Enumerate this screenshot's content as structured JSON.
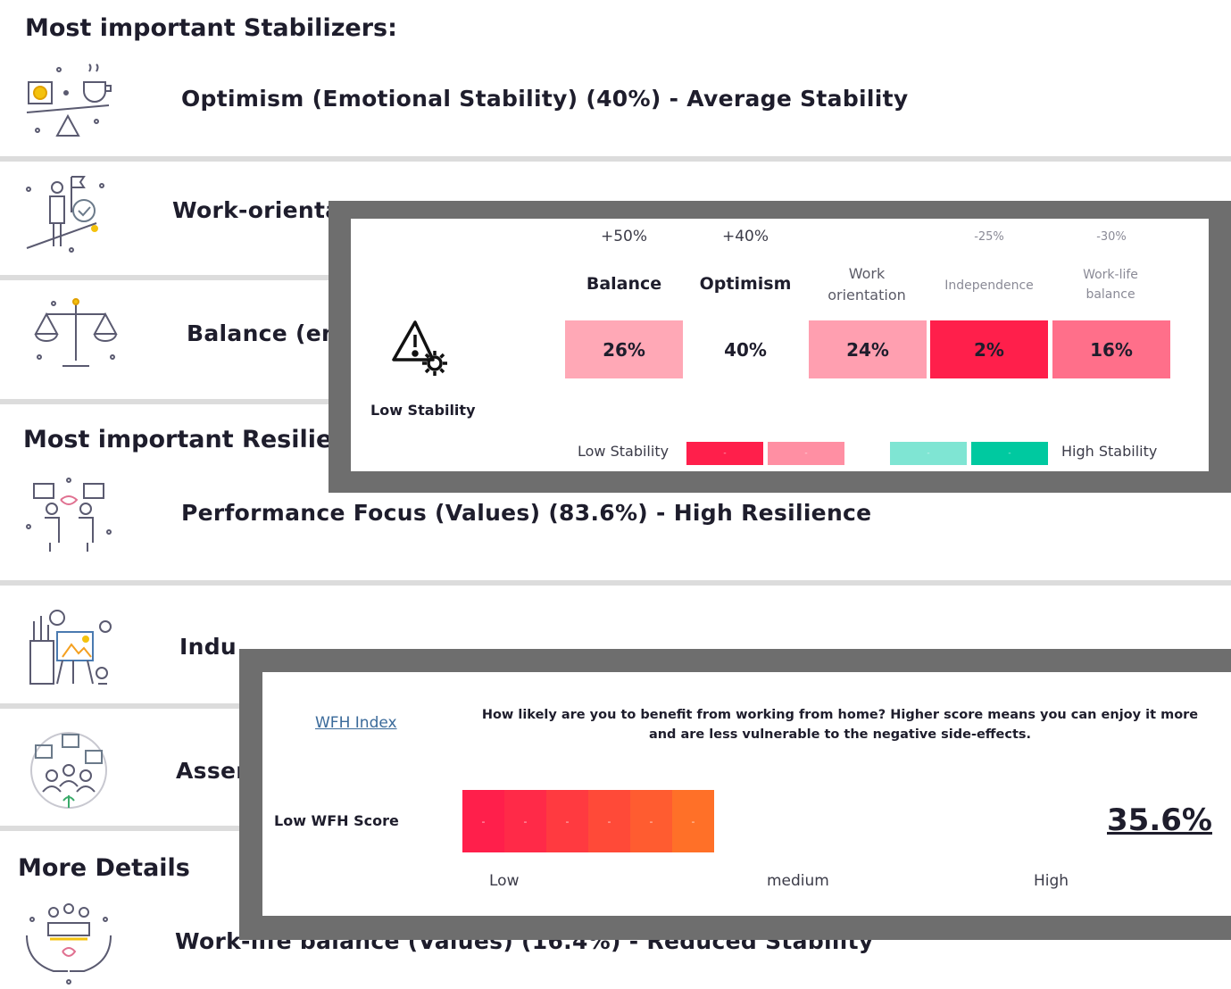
{
  "stabilizers": {
    "heading": "Most important Stabilizers:",
    "items": [
      {
        "label": "Optimism (Emotional Stability) (40%) - Average Stability",
        "icon": "balance-scale-coffee-icon"
      },
      {
        "label": "Work-orienta",
        "icon": "goal-achievement-icon"
      },
      {
        "label": "Balance (em",
        "icon": "scales-icon"
      }
    ]
  },
  "resilience": {
    "heading": "Most important Resilie",
    "items": [
      {
        "label": "Performance Focus (Values) (83.6%) - High Resilience",
        "icon": "team-collaboration-icon"
      },
      {
        "label": "Indu",
        "icon": "creative-tools-icon"
      },
      {
        "label": "Asser",
        "icon": "group-discussion-icon"
      }
    ]
  },
  "more_details": {
    "heading": "More Details",
    "items": [
      {
        "label": "Work-life balance (Values) (16.4%) - Reduced Stability",
        "icon": "caring-hands-icon"
      }
    ]
  },
  "stability_panel": {
    "status_label": "Low Stability",
    "status_icon": "warning-gear-icon",
    "columns": [
      {
        "delta": "+50%",
        "name": "Balance",
        "value": "26%",
        "color": "#ffa8b6"
      },
      {
        "delta": "+40%",
        "name": "Optimism",
        "value": "40%",
        "color": "#ffffff"
      },
      {
        "delta": "",
        "name": "Work orientation",
        "value": "24%",
        "color": "#ff9fb0"
      },
      {
        "delta": "-25%",
        "name": "Independence",
        "value": "2%",
        "color": "#ff1f4b"
      },
      {
        "delta": "-30%",
        "name": "Work-life balance",
        "value": "16%",
        "color": "#ff6f8a"
      }
    ],
    "legend": {
      "low_label": "Low Stability",
      "high_label": "High Stability",
      "colors": [
        "#ff1f4b",
        "#ff8fa3",
        "#ffffff",
        "#7fe5d3",
        "#00c9a0"
      ]
    }
  },
  "wfh_panel": {
    "link": "WFH Index",
    "description": "How likely are you to benefit from working from home? Higher score means you can enjoy it more and are less vulnerable to the negative side-effects.",
    "status_label": "Low WFH Score",
    "score": "35.6%",
    "segment_colors": [
      "#ff1f4b",
      "#ff2a48",
      "#ff3a40",
      "#ff4a38",
      "#ff5c30",
      "#ff7028"
    ],
    "scale": {
      "low": "Low",
      "medium": "medium",
      "high": "High"
    }
  }
}
